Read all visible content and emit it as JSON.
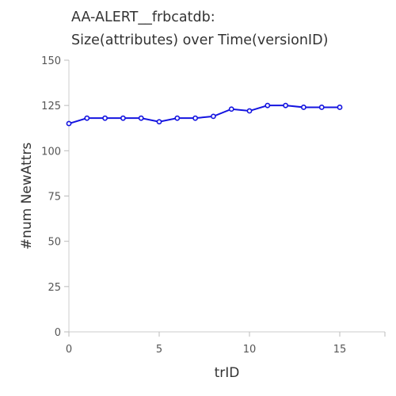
{
  "chart_data": {
    "type": "line",
    "title": "AA-ALERT__frbcatdb:",
    "subtitle": "Size(attributes) over Time(versionID)",
    "xlabel": "trID",
    "ylabel": "#num NewAttrs",
    "xlim": [
      0,
      17.5
    ],
    "ylim": [
      0,
      150
    ],
    "xticks": [
      "0",
      "5",
      "10",
      "15"
    ],
    "yticks": [
      "0",
      "25",
      "50",
      "75",
      "100",
      "125",
      "150"
    ],
    "grid": false,
    "series": [
      {
        "color": "#1414e0",
        "x": [
          0,
          1,
          2,
          3,
          4,
          5,
          6,
          7,
          8,
          9,
          10,
          11,
          12,
          13,
          14,
          15
        ],
        "y": [
          115,
          118,
          118,
          118,
          118,
          116,
          118,
          118,
          119,
          123,
          122,
          125,
          125,
          124,
          124,
          124
        ]
      }
    ]
  }
}
